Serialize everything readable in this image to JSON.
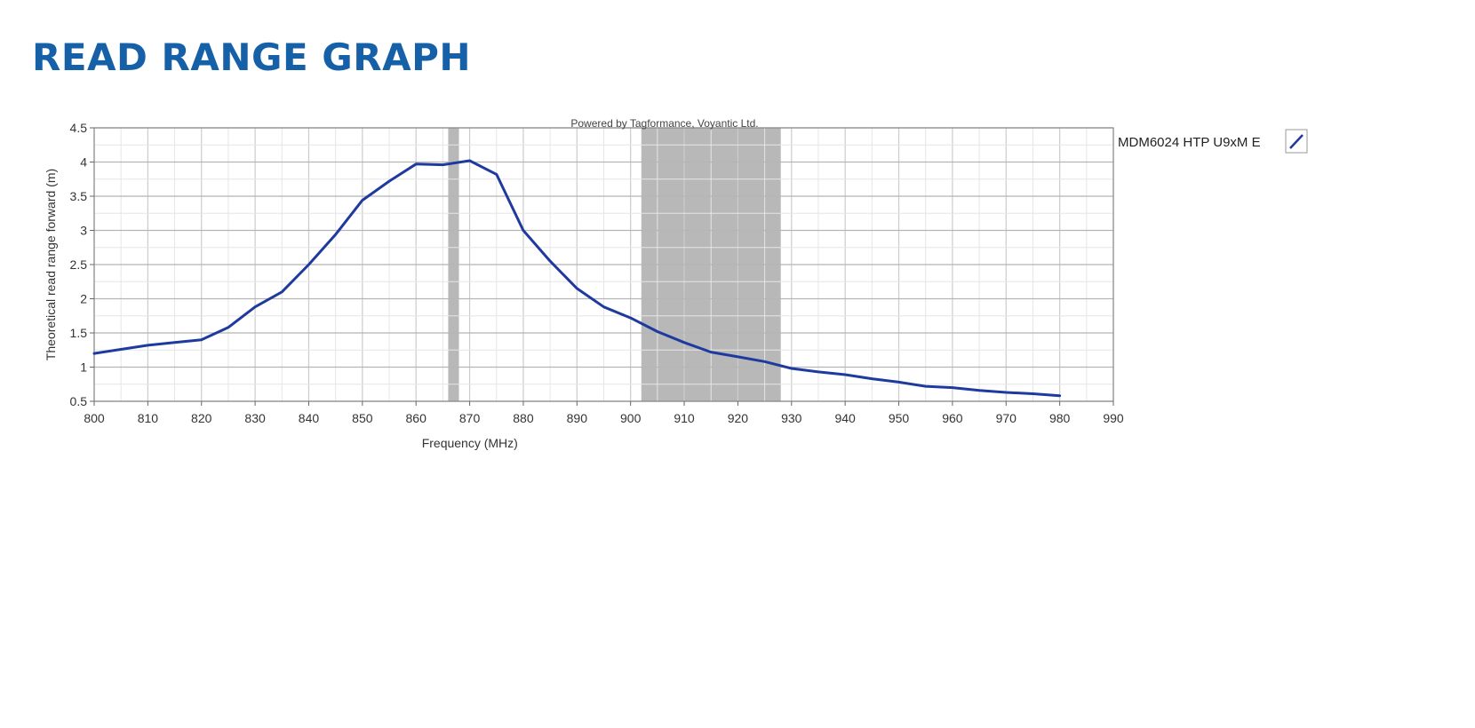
{
  "page": {
    "title": "READ RANGE GRAPH"
  },
  "chart_data": {
    "type": "line",
    "watermark": "Powered by Tagformance, Voyantic Ltd.",
    "xlabel": "Frequency (MHz)",
    "ylabel": "Theoretical read range forward (m)",
    "xlim": [
      800,
      990
    ],
    "ylim": [
      0.5,
      4.5
    ],
    "x_ticks": [
      800,
      810,
      820,
      830,
      840,
      850,
      860,
      870,
      880,
      890,
      900,
      910,
      920,
      930,
      940,
      950,
      960,
      970,
      980,
      990
    ],
    "y_ticks": [
      0.5,
      1,
      1.5,
      2,
      2.5,
      3,
      3.5,
      4,
      4.5
    ],
    "y_tick_labels": [
      "0.5",
      "1",
      "1.5",
      "2",
      "2.5",
      "3",
      "3.5",
      "4",
      "4.5"
    ],
    "grid": true,
    "legend_position": "right",
    "shaded_bands": [
      {
        "from": 866,
        "to": 868,
        "color": "#b8b8b8"
      },
      {
        "from": 902,
        "to": 928,
        "color": "#b8b8b8"
      }
    ],
    "series": [
      {
        "name": "MDM6024 HTP U9xM E",
        "color": "#1f3a9e",
        "x": [
          800,
          805,
          810,
          815,
          820,
          825,
          830,
          835,
          840,
          845,
          850,
          855,
          860,
          865,
          870,
          875,
          880,
          885,
          890,
          895,
          900,
          905,
          910,
          915,
          920,
          925,
          930,
          935,
          940,
          945,
          950,
          955,
          960,
          965,
          970,
          975,
          980
        ],
        "y": [
          1.2,
          1.26,
          1.32,
          1.36,
          1.4,
          1.58,
          1.88,
          2.1,
          2.5,
          2.94,
          3.44,
          3.72,
          3.97,
          3.96,
          4.02,
          3.82,
          3.0,
          2.55,
          2.15,
          1.88,
          1.72,
          1.52,
          1.36,
          1.22,
          1.15,
          1.08,
          0.98,
          0.93,
          0.89,
          0.83,
          0.78,
          0.72,
          0.7,
          0.66,
          0.63,
          0.61,
          0.58
        ]
      }
    ]
  }
}
